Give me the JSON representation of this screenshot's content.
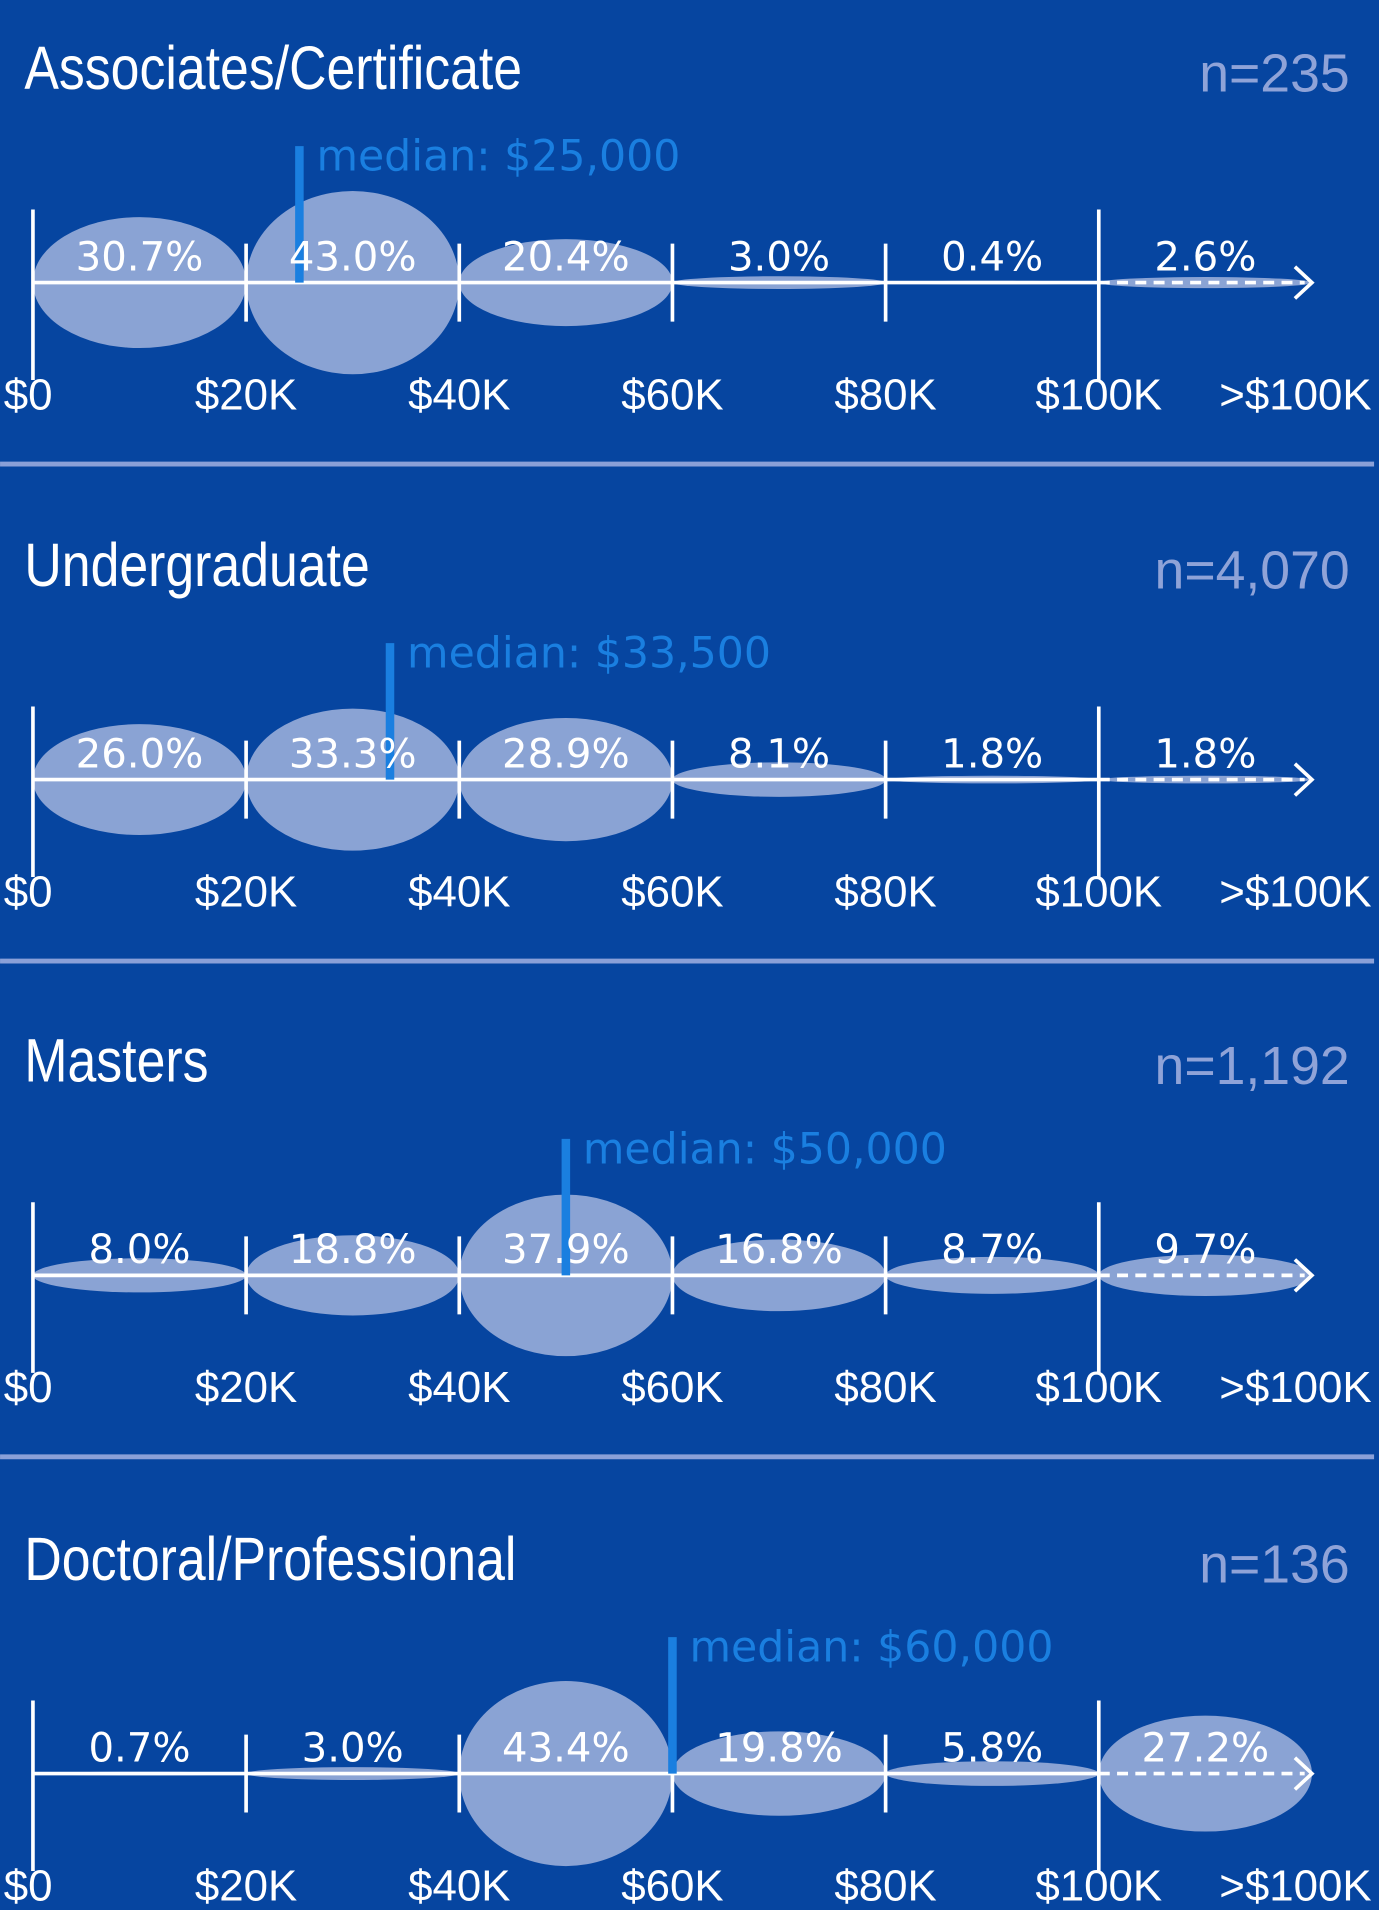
{
  "chart_data": [
    {
      "type": "bubble",
      "title": "Associates/Certificate",
      "annotation": "n=235",
      "median": {
        "value": 25000,
        "label": "median: $25,000"
      },
      "bins": [
        0,
        20000,
        40000,
        60000,
        80000,
        100000,
        120000
      ],
      "values": [
        30.7,
        43.0,
        20.4,
        3.0,
        0.4,
        2.6
      ],
      "value_labels": [
        "30.7%",
        "43.0%",
        "20.4%",
        "3.0%",
        "0.4%",
        "2.6%"
      ],
      "xlim": [
        0,
        120000
      ],
      "xticks": [
        {
          "value": 0,
          "label": "$0"
        },
        {
          "value": 20000,
          "label": "$20K"
        },
        {
          "value": 40000,
          "label": "$40K"
        },
        {
          "value": 60000,
          "label": "$60K"
        },
        {
          "value": 80000,
          "label": "$80K"
        },
        {
          "value": 100000,
          "label": "$100K"
        },
        {
          "value": 120000,
          "label": ">$100K"
        }
      ],
      "color": "#8aa3d4"
    },
    {
      "type": "bubble",
      "title": "Undergraduate",
      "annotation": "n=4,070",
      "median": {
        "value": 33500,
        "label": "median: $33,500"
      },
      "bins": [
        0,
        20000,
        40000,
        60000,
        80000,
        100000,
        120000
      ],
      "values": [
        26.0,
        33.3,
        28.9,
        8.1,
        1.8,
        1.8
      ],
      "value_labels": [
        "26.0%",
        "33.3%",
        "28.9%",
        "8.1%",
        "1.8%",
        "1.8%"
      ],
      "xlim": [
        0,
        120000
      ],
      "xticks": [
        {
          "value": 0,
          "label": "$0"
        },
        {
          "value": 20000,
          "label": "$20K"
        },
        {
          "value": 40000,
          "label": "$40K"
        },
        {
          "value": 60000,
          "label": "$60K"
        },
        {
          "value": 80000,
          "label": "$80K"
        },
        {
          "value": 100000,
          "label": "$100K"
        },
        {
          "value": 120000,
          "label": ">$100K"
        }
      ],
      "color": "#8aa3d4"
    },
    {
      "type": "bubble",
      "title": "Masters",
      "annotation": "n=1,192",
      "median": {
        "value": 50000,
        "label": "median: $50,000"
      },
      "bins": [
        0,
        20000,
        40000,
        60000,
        80000,
        100000,
        120000
      ],
      "values": [
        8.0,
        18.8,
        37.9,
        16.8,
        8.7,
        9.7
      ],
      "value_labels": [
        "8.0%",
        "18.8%",
        "37.9%",
        "16.8%",
        "8.7%",
        "9.7%"
      ],
      "xlim": [
        0,
        120000
      ],
      "xticks": [
        {
          "value": 0,
          "label": "$0"
        },
        {
          "value": 20000,
          "label": "$20K"
        },
        {
          "value": 40000,
          "label": "$40K"
        },
        {
          "value": 60000,
          "label": "$60K"
        },
        {
          "value": 80000,
          "label": "$80K"
        },
        {
          "value": 100000,
          "label": "$100K"
        },
        {
          "value": 120000,
          "label": ">$100K"
        }
      ],
      "color": "#8aa3d4"
    },
    {
      "type": "bubble",
      "title": "Doctoral/Professional",
      "annotation": "n=136",
      "median": {
        "value": 60000,
        "label": "median: $60,000"
      },
      "bins": [
        0,
        20000,
        40000,
        60000,
        80000,
        100000,
        120000
      ],
      "values": [
        0.7,
        3.0,
        43.4,
        19.8,
        5.8,
        27.2
      ],
      "value_labels": [
        "0.7%",
        "3.0%",
        "43.4%",
        "19.8%",
        "5.8%",
        "27.2%"
      ],
      "xlim": [
        0,
        120000
      ],
      "xticks": [
        {
          "value": 0,
          "label": "$0"
        },
        {
          "value": 20000,
          "label": "$20K"
        },
        {
          "value": 40000,
          "label": "$40K"
        },
        {
          "value": 60000,
          "label": "$60K"
        },
        {
          "value": 80000,
          "label": "$80K"
        },
        {
          "value": 100000,
          "label": "$100K"
        },
        {
          "value": 120000,
          "label": ">$100K"
        }
      ],
      "color": "#8aa3d4"
    }
  ]
}
